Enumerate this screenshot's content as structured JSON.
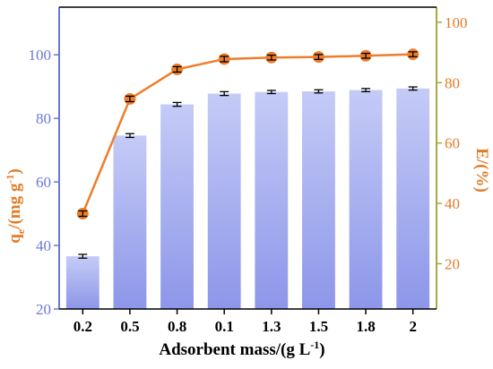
{
  "chart_data": {
    "type": "bar",
    "categories": [
      "0.2",
      "0.5",
      "0.8",
      "0.1",
      "1.3",
      "1.5",
      "1.8",
      "2"
    ],
    "xlabel": "Adsorbent mass/(g L",
    "xlabel_sup": "-1",
    "xlabel_end": ")",
    "left_axis": {
      "label_main": "q",
      "label_sub": "e",
      "label_rest": "/(mg g",
      "label_sup": "-1",
      "label_end": ")",
      "ylim": [
        20,
        115
      ],
      "ticks": [
        20,
        40,
        60,
        80,
        100
      ],
      "tick_labels": [
        "20",
        "40",
        "60",
        "80",
        "100"
      ],
      "color": "#6b78d8"
    },
    "right_axis": {
      "label": "E/(%)",
      "ylim": [
        5,
        105
      ],
      "ticks": [
        20,
        40,
        60,
        80,
        100
      ],
      "tick_labels": [
        "20",
        "40",
        "60",
        "80",
        "100"
      ],
      "color": "#e27b26",
      "spine_color": "#a8a845"
    },
    "series": [
      {
        "type": "bar",
        "axis": "left",
        "values": [
          36.6,
          74.6,
          84.4,
          87.8,
          88.3,
          88.5,
          88.9,
          89.4
        ],
        "errors": [
          0.6,
          0.6,
          0.6,
          0.6,
          0.5,
          0.5,
          0.5,
          0.5
        ],
        "color_top": "#c5cbf6",
        "color_bottom": "#8d96e9"
      },
      {
        "type": "line",
        "axis": "right",
        "values": [
          36.6,
          74.6,
          84.4,
          87.8,
          88.3,
          88.5,
          88.9,
          89.4
        ],
        "errors": [
          0.9,
          0.9,
          0.9,
          0.9,
          0.8,
          0.8,
          0.8,
          0.8
        ],
        "color": "#ee7d2b"
      }
    ],
    "grid": false,
    "legend": "none"
  }
}
